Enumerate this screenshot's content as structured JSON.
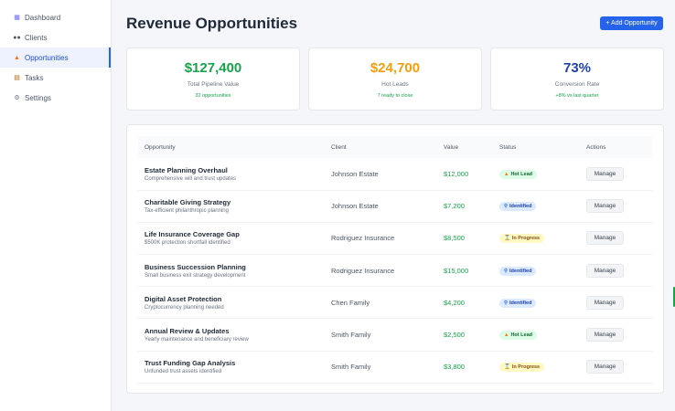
{
  "sidebar": {
    "items": [
      {
        "label": "Dashboard",
        "icon": "chart-icon"
      },
      {
        "label": "Clients",
        "icon": "people-icon"
      },
      {
        "label": "Opportunities",
        "icon": "fire-icon",
        "active": true
      },
      {
        "label": "Tasks",
        "icon": "clipboard-icon"
      },
      {
        "label": "Settings",
        "icon": "gear-icon"
      }
    ]
  },
  "header": {
    "title": "Revenue Opportunities",
    "add_button": "+ Add Opportunity"
  },
  "stats": [
    {
      "value": "$127,400",
      "label": "Total Pipeline Value",
      "sub": "32 opportunities",
      "color": "#16a34a"
    },
    {
      "value": "$24,700",
      "label": "Hot Leads",
      "sub": "7 ready to close",
      "color": "#f59e0b"
    },
    {
      "value": "73%",
      "label": "Conversion Rate",
      "sub": "+8% vs last quarter",
      "color": "#1e40af"
    }
  ],
  "table": {
    "headers": [
      "Opportunity",
      "Client",
      "Value",
      "Status",
      "Actions"
    ],
    "rows": [
      {
        "title": "Estate Planning Overhaul",
        "desc": "Comprehensive will and trust updates",
        "client": "Johnson Estate",
        "value": "$12,000",
        "status": "Hot Lead",
        "status_type": "hot",
        "action": "Manage"
      },
      {
        "title": "Charitable Giving Strategy",
        "desc": "Tax-efficient philanthropic planning",
        "client": "Johnson Estate",
        "value": "$7,200",
        "status": "Identified",
        "status_type": "identified",
        "action": "Manage"
      },
      {
        "title": "Life Insurance Coverage Gap",
        "desc": "$500K protection shortfall identified",
        "client": "Rodriguez Insurance",
        "value": "$8,500",
        "status": "In Progress",
        "status_type": "progress",
        "action": "Manage"
      },
      {
        "title": "Business Succession Planning",
        "desc": "Small business exit strategy development",
        "client": "Rodriguez Insurance",
        "value": "$15,000",
        "status": "Identified",
        "status_type": "identified",
        "action": "Manage"
      },
      {
        "title": "Digital Asset Protection",
        "desc": "Cryptocurrency planning needed",
        "client": "Chen Family",
        "value": "$4,200",
        "status": "Identified",
        "status_type": "identified",
        "action": "Manage"
      },
      {
        "title": "Annual Review & Updates",
        "desc": "Yearly maintenance and beneficiary review",
        "client": "Smith Family",
        "value": "$2,500",
        "status": "Hot Lead",
        "status_type": "hot",
        "action": "Manage"
      },
      {
        "title": "Trust Funding Gap Analysis",
        "desc": "Unfunded trust assets identified",
        "client": "Smith Family",
        "value": "$3,800",
        "status": "In Progress",
        "status_type": "progress",
        "action": "Manage"
      }
    ]
  },
  "status_icons": {
    "hot": "fire-icon",
    "identified": "magnifier-icon",
    "progress": "hourglass-icon"
  }
}
